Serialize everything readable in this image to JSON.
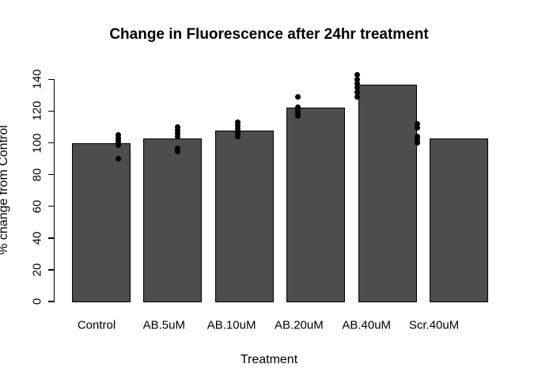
{
  "chart_data": {
    "type": "bar",
    "title": "Change in Fluorescence after 24hr treatment",
    "xlabel": "Treatment",
    "ylabel": "% change from Control",
    "ylim": [
      0,
      140
    ],
    "yticks": [
      0,
      20,
      40,
      60,
      80,
      100,
      120,
      140
    ],
    "grid": "off",
    "legend": "none",
    "categories": [
      "Control",
      "AB.5uM",
      "AB.10uM",
      "AB.20uM",
      "AB.40uM",
      "Scr.40uM"
    ],
    "bar_values": [
      100,
      103,
      108,
      122,
      136.5,
      103
    ],
    "points_series_note": "individual replicate measurements overlaid as black dots, slightly offset from bar centers",
    "points": [
      [
        105,
        103,
        101.5,
        100,
        98.5,
        90
      ],
      [
        110,
        108,
        106,
        104,
        96.5,
        94.5
      ],
      [
        113,
        111,
        109,
        107,
        105.5,
        104
      ],
      [
        129,
        122.5,
        120.5,
        118.5,
        117
      ],
      [
        143,
        140,
        137.5,
        135,
        132,
        129
      ],
      [
        112,
        109.5,
        104,
        102,
        100
      ]
    ],
    "bar_color": "#4d4d4d",
    "bar_border_color": "#000000",
    "point_color": "#000000",
    "text_color": "#000000",
    "background_color": "#ffffff"
  }
}
